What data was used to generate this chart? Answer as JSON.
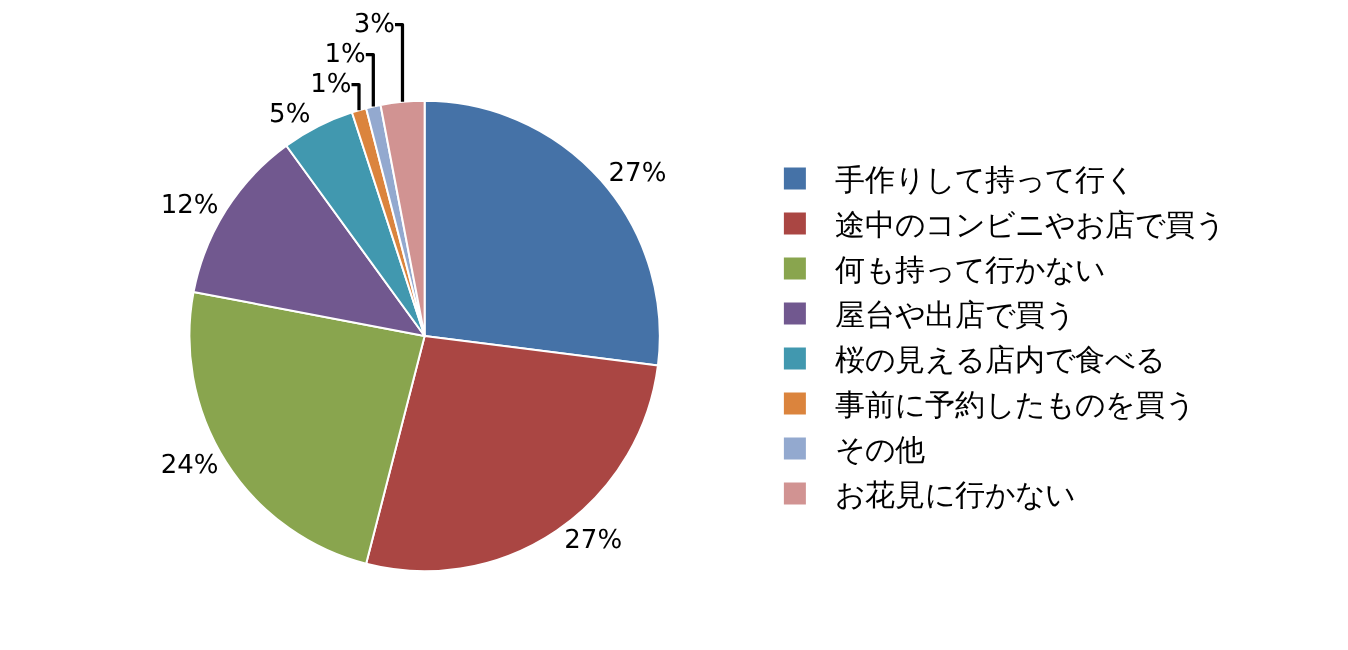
{
  "chart_data": {
    "type": "pie",
    "categories": [
      "手作りして持って行く",
      "途中のコンビニやお店で買う",
      "何も持って行かない",
      "屋台や出店で買う",
      "桜の見える店内で食べる",
      "事前に予約したものを買う",
      "その他",
      "お花見に行かない"
    ],
    "values": [
      27,
      27,
      24,
      12,
      5,
      1,
      1,
      3
    ],
    "value_labels": [
      "27%",
      "27%",
      "24%",
      "12%",
      "5%",
      "1%",
      "1%",
      "3%"
    ],
    "colors": [
      "#4572a7",
      "#aa4643",
      "#89a54e",
      "#71588f",
      "#4198af",
      "#db843d",
      "#93a9cf",
      "#d19392"
    ],
    "legend": "right"
  }
}
